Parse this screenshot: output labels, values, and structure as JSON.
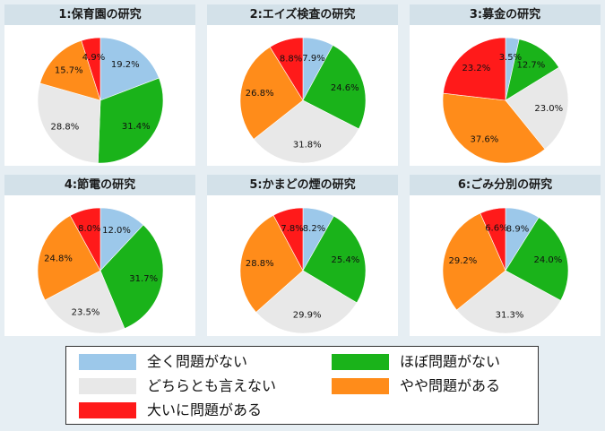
{
  "colors": {
    "no_problem": "#9cc8ea",
    "almost_no_problem": "#1ab31a",
    "neutral": "#e8e8e8",
    "somewhat_problem": "#ff8c1a",
    "big_problem": "#ff1a1a"
  },
  "legend": [
    {
      "key": "no_problem",
      "label": "全く問題がない"
    },
    {
      "key": "almost_no_problem",
      "label": "ほぼ問題がない"
    },
    {
      "key": "neutral",
      "label": "どちらとも言えない"
    },
    {
      "key": "somewhat_problem",
      "label": "やや問題がある"
    },
    {
      "key": "big_problem",
      "label": "大いに問題がある"
    }
  ],
  "chart_data": [
    {
      "type": "pie",
      "title": "1:保育園の研究",
      "slices": [
        {
          "key": "no_problem",
          "label": "19.2%",
          "value": 19.2
        },
        {
          "key": "almost_no_problem",
          "label": "31.4%",
          "value": 31.4
        },
        {
          "key": "neutral",
          "label": "28.8%",
          "value": 28.8
        },
        {
          "key": "somewhat_problem",
          "label": "15.7%",
          "value": 15.7
        },
        {
          "key": "big_problem",
          "label": "4.9%",
          "value": 4.9
        }
      ]
    },
    {
      "type": "pie",
      "title": "2:エイズ検査の研究",
      "slices": [
        {
          "key": "no_problem",
          "label": "7.9%",
          "value": 7.9
        },
        {
          "key": "almost_no_problem",
          "label": "24.6%",
          "value": 24.6
        },
        {
          "key": "neutral",
          "label": "31.8%",
          "value": 31.8
        },
        {
          "key": "somewhat_problem",
          "label": "26.8%",
          "value": 26.8
        },
        {
          "key": "big_problem",
          "label": "8.8%",
          "value": 8.8
        }
      ]
    },
    {
      "type": "pie",
      "title": "3:募金の研究",
      "slices": [
        {
          "key": "no_problem",
          "label": "3.5%",
          "value": 3.5
        },
        {
          "key": "almost_no_problem",
          "label": "12.7%",
          "value": 12.7
        },
        {
          "key": "neutral",
          "label": "23.0%",
          "value": 23.0
        },
        {
          "key": "somewhat_problem",
          "label": "37.6%",
          "value": 37.6
        },
        {
          "key": "big_problem",
          "label": "23.2%",
          "value": 23.2
        }
      ]
    },
    {
      "type": "pie",
      "title": "4:節電の研究",
      "slices": [
        {
          "key": "no_problem",
          "label": "12.0%",
          "value": 12.0
        },
        {
          "key": "almost_no_problem",
          "label": "31.7%",
          "value": 31.7
        },
        {
          "key": "neutral",
          "label": "23.5%",
          "value": 23.5
        },
        {
          "key": "somewhat_problem",
          "label": "24.8%",
          "value": 24.8
        },
        {
          "key": "big_problem",
          "label": "8.0%",
          "value": 8.0
        }
      ]
    },
    {
      "type": "pie",
      "title": "5:かまどの煙の研究",
      "slices": [
        {
          "key": "no_problem",
          "label": "8.2%",
          "value": 8.2
        },
        {
          "key": "almost_no_problem",
          "label": "25.4%",
          "value": 25.4
        },
        {
          "key": "neutral",
          "label": "29.9%",
          "value": 29.9
        },
        {
          "key": "somewhat_problem",
          "label": "28.8%",
          "value": 28.8
        },
        {
          "key": "big_problem",
          "label": "7.8%",
          "value": 7.8
        }
      ]
    },
    {
      "type": "pie",
      "title": "6:ごみ分別の研究",
      "slices": [
        {
          "key": "no_problem",
          "label": "8.9%",
          "value": 8.9
        },
        {
          "key": "almost_no_problem",
          "label": "24.0%",
          "value": 24.0
        },
        {
          "key": "neutral",
          "label": "31.3%",
          "value": 31.3
        },
        {
          "key": "somewhat_problem",
          "label": "29.2%",
          "value": 29.2
        },
        {
          "key": "big_problem",
          "label": "6.6%",
          "value": 6.6
        }
      ]
    }
  ]
}
